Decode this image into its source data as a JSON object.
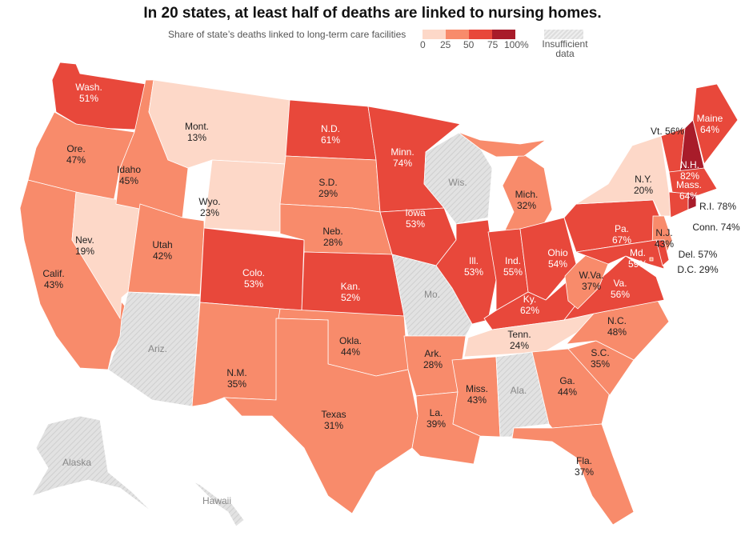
{
  "title": "In 20 states, at least half of deaths are linked to nursing homes.",
  "legend": {
    "label": "Share of state’s deaths linked to long-term care facilities",
    "ticks": [
      "0",
      "25",
      "50",
      "75",
      "100%"
    ],
    "insufficient_line1": "Insufficient",
    "insufficient_line2": "data",
    "colors": [
      "#fdd8c8",
      "#f88b6b",
      "#e8483b",
      "#a81c2a"
    ],
    "insufficient_color": "#dcdcdc"
  },
  "states": [
    {
      "id": "WA",
      "label": "Wash.",
      "value": 51
    },
    {
      "id": "OR",
      "label": "Ore.",
      "value": 47
    },
    {
      "id": "CA",
      "label": "Calif.",
      "value": 43
    },
    {
      "id": "NV",
      "label": "Nev.",
      "value": 19
    },
    {
      "id": "ID",
      "label": "Idaho",
      "value": 45
    },
    {
      "id": "MT",
      "label": "Mont.",
      "value": 13
    },
    {
      "id": "WY",
      "label": "Wyo.",
      "value": 23
    },
    {
      "id": "UT",
      "label": "Utah",
      "value": 42
    },
    {
      "id": "AZ",
      "label": "Ariz.",
      "value": null
    },
    {
      "id": "CO",
      "label": "Colo.",
      "value": 53
    },
    {
      "id": "NM",
      "label": "N.M.",
      "value": 35
    },
    {
      "id": "ND",
      "label": "N.D.",
      "value": 61
    },
    {
      "id": "SD",
      "label": "S.D.",
      "value": 29
    },
    {
      "id": "NE",
      "label": "Neb.",
      "value": 28
    },
    {
      "id": "KS",
      "label": "Kan.",
      "value": 52
    },
    {
      "id": "OK",
      "label": "Okla.",
      "value": 44
    },
    {
      "id": "TX",
      "label": "Texas",
      "value": 31
    },
    {
      "id": "MN",
      "label": "Minn.",
      "value": 74
    },
    {
      "id": "IA",
      "label": "Iowa",
      "value": 53
    },
    {
      "id": "MO",
      "label": "Mo.",
      "value": null
    },
    {
      "id": "AR",
      "label": "Ark.",
      "value": 28
    },
    {
      "id": "LA",
      "label": "La.",
      "value": 39
    },
    {
      "id": "WI",
      "label": "Wis.",
      "value": null
    },
    {
      "id": "IL",
      "label": "Ill.",
      "value": 53
    },
    {
      "id": "MI",
      "label": "Mich.",
      "value": 32
    },
    {
      "id": "IN",
      "label": "Ind.",
      "value": 55
    },
    {
      "id": "OH",
      "label": "Ohio",
      "value": 54
    },
    {
      "id": "KY",
      "label": "Ky.",
      "value": 62
    },
    {
      "id": "TN",
      "label": "Tenn.",
      "value": 24
    },
    {
      "id": "MS",
      "label": "Miss.",
      "value": 43
    },
    {
      "id": "AL",
      "label": "Ala.",
      "value": null
    },
    {
      "id": "GA",
      "label": "Ga.",
      "value": 44
    },
    {
      "id": "FL",
      "label": "Fla.",
      "value": 37
    },
    {
      "id": "SC",
      "label": "S.C.",
      "value": 35
    },
    {
      "id": "NC",
      "label": "N.C.",
      "value": 48
    },
    {
      "id": "VA",
      "label": "Va.",
      "value": 56
    },
    {
      "id": "WV",
      "label": "W.Va.",
      "value": 37
    },
    {
      "id": "PA",
      "label": "Pa.",
      "value": 67
    },
    {
      "id": "NY",
      "label": "N.Y.",
      "value": 20
    },
    {
      "id": "NJ",
      "label": "N.J.",
      "value": 43
    },
    {
      "id": "MD",
      "label": "Md.",
      "value": 59
    },
    {
      "id": "DE",
      "label": "Del.",
      "value": 57
    },
    {
      "id": "DC",
      "label": "D.C.",
      "value": 29
    },
    {
      "id": "VT",
      "label": "Vt.",
      "value": 56
    },
    {
      "id": "NH",
      "label": "N.H.",
      "value": 82
    },
    {
      "id": "ME",
      "label": "Maine",
      "value": 64
    },
    {
      "id": "MA",
      "label": "Mass.",
      "value": 64
    },
    {
      "id": "CT",
      "label": "Conn.",
      "value": 74
    },
    {
      "id": "RI",
      "label": "R.I.",
      "value": 78
    },
    {
      "id": "AK",
      "label": "Alaska",
      "value": null
    },
    {
      "id": "HI",
      "label": "Hawaii",
      "value": null
    }
  ]
}
